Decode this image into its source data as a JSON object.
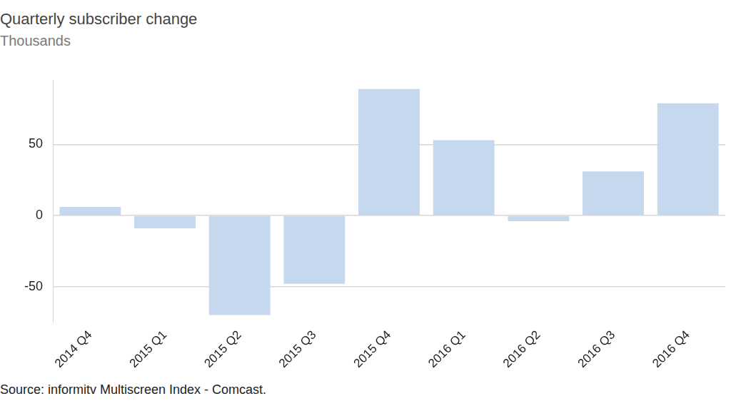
{
  "chart_data": {
    "type": "bar",
    "title": "Quarterly subscriber change",
    "subtitle": "Thousands",
    "source": "Source: informitv Multiscreen Index - Comcast.",
    "categories": [
      "2014 Q4",
      "2015 Q1",
      "2015 Q2",
      "2015 Q3",
      "2015 Q4",
      "2016 Q1",
      "2016 Q2",
      "2016 Q3",
      "2016 Q4"
    ],
    "values": [
      6,
      -9,
      -70,
      -48,
      89,
      53,
      -4,
      31,
      79
    ],
    "color": "#c5d8ed",
    "ylim": [
      -75,
      95
    ],
    "yticks": [
      -50,
      0,
      50
    ],
    "grid": true
  }
}
